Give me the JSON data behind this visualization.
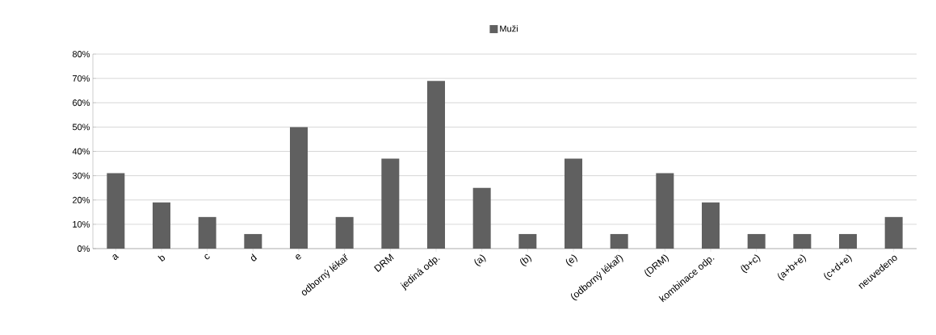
{
  "chart_data": {
    "type": "bar",
    "categories": [
      "a",
      "b",
      "c",
      "d",
      "e",
      "odborný lékař",
      "DRM",
      "jediná odp.",
      "(a)",
      "(b)",
      "(e)",
      "(odborný lékař)",
      "(DRM)",
      "kombinace odp.",
      "(b+c)",
      "(a+b+e)",
      "(c+d+e)",
      "neuvedeno"
    ],
    "series": [
      {
        "name": "Muži",
        "color": "#606060",
        "values": [
          31,
          19,
          13,
          6,
          50,
          13,
          37,
          69,
          25,
          6,
          37,
          6,
          31,
          19,
          6,
          6,
          6,
          13
        ]
      }
    ],
    "ylim": [
      0,
      80
    ],
    "yticks": [
      {
        "value": 0,
        "label": "0%"
      },
      {
        "value": 10,
        "label": "10%"
      },
      {
        "value": 20,
        "label": "20%"
      },
      {
        "value": 30,
        "label": "30%"
      },
      {
        "value": 40,
        "label": "40%"
      },
      {
        "value": 50,
        "label": "50%"
      },
      {
        "value": 60,
        "label": "60%"
      },
      {
        "value": 70,
        "label": "70%"
      },
      {
        "value": 80,
        "label": "80%"
      }
    ],
    "grid": "y",
    "legend": "top"
  }
}
